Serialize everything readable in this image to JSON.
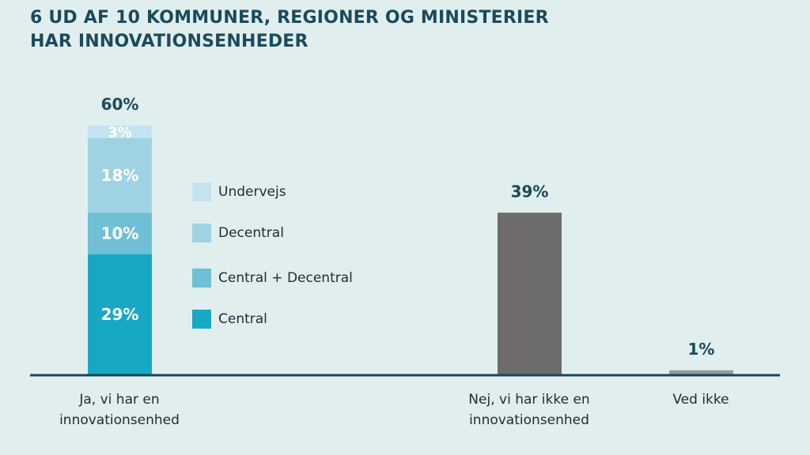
{
  "title_lines": [
    "6 UD AF 10 KOMMUNER, REGIONER OG MINISTERIER",
    "HAR INNOVATIONSENHEDER"
  ],
  "colors": {
    "background": "#e0efee",
    "title": "#1b4a5e",
    "axis": "#1c4456",
    "central": "#17a8c4",
    "central_decentral": "#6fc0d6",
    "decentral": "#9fd3e3",
    "undervejs": "#c3e4ee",
    "nej": "#6d6b6b",
    "ved_ikke": "#9a9898"
  },
  "chart_data": {
    "type": "bar",
    "title": "6 UD AF 10 KOMMUNER, REGIONER OG MINISTERIER HAR INNOVATIONSENHEDER",
    "categories": [
      [
        "Ja, vi har en",
        "innovationsenhed"
      ],
      [
        "Nej, vi har ikke en",
        "innovationsenhed"
      ],
      [
        "Ved ikke"
      ]
    ],
    "stack": {
      "total_label": "60%",
      "segments": [
        {
          "name": "Central",
          "value": 29,
          "label": "29%",
          "color_key": "central"
        },
        {
          "name": "Central + Decentral",
          "value": 10,
          "label": "10%",
          "color_key": "central_decentral"
        },
        {
          "name": "Decentral",
          "value": 18,
          "label": "18%",
          "color_key": "decentral"
        },
        {
          "name": "Undervejs",
          "value": 3,
          "label": "3%",
          "color_key": "undervejs"
        }
      ]
    },
    "bars": [
      {
        "value": 39,
        "label": "39%",
        "color_key": "nej"
      },
      {
        "value": 1,
        "label": "1%",
        "color_key": "ved_ikke"
      }
    ],
    "legend": [
      "Undervejs",
      "Decentral",
      "Central + Decentral",
      "Central"
    ],
    "xlabel": "",
    "ylabel": "",
    "ylim": [
      0,
      60
    ],
    "grid": false
  }
}
